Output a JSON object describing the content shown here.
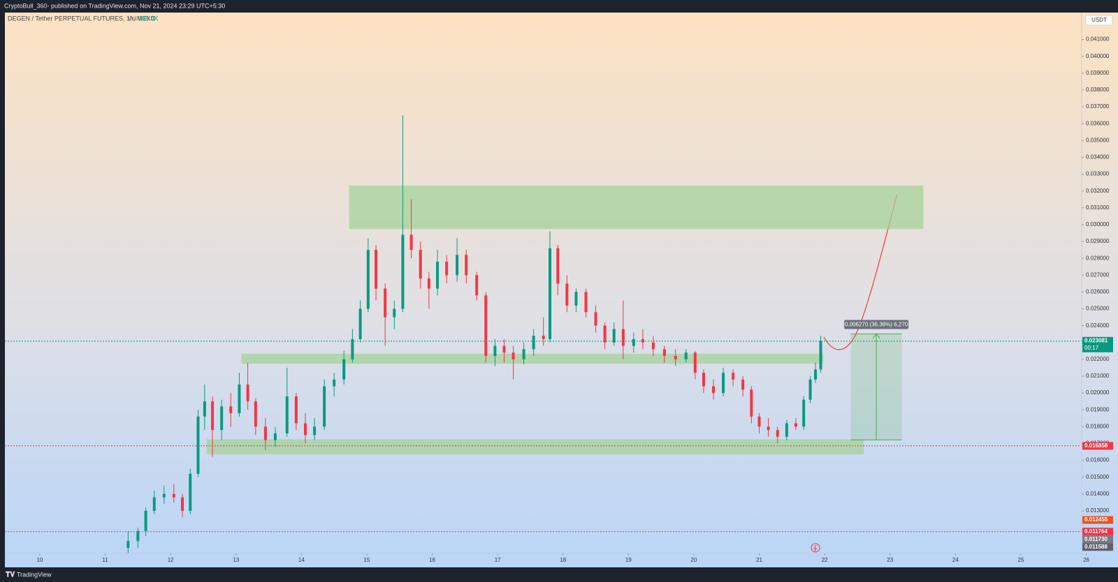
{
  "chart_data": {
    "type": "candlestick",
    "header": "CryptoBull_360- published on TradingView.com, Nov 21, 2024 23:29 UTC+5:30",
    "title": "DEGEN / Tether PERPETUAL FUTURES, 1h, MEXC",
    "volume_label": "Vol",
    "volume": "335.8K",
    "currency": "USDT",
    "brand": "TradingView",
    "up_color": "#089981",
    "down_color": "#f23645",
    "x": [
      11.35,
      11.5,
      11.62,
      11.75,
      11.9,
      12.05,
      12.18,
      12.3,
      12.42,
      12.52,
      12.64,
      12.78,
      12.92,
      13.05,
      13.18,
      13.3,
      13.45,
      13.6,
      13.78,
      13.92,
      14.06,
      14.2,
      14.35,
      14.5,
      14.65,
      14.78,
      14.9,
      15.02,
      15.14,
      15.28,
      15.42,
      15.55,
      15.68,
      15.82,
      15.95,
      16.08,
      16.22,
      16.38,
      16.52,
      16.68,
      16.82,
      16.96,
      17.1,
      17.24,
      17.4,
      17.55,
      17.7,
      17.8,
      17.92,
      18.06,
      18.2,
      18.35,
      18.5,
      18.64,
      18.78,
      18.92,
      19.08,
      19.22,
      19.38,
      19.55,
      19.72,
      19.88,
      20.02,
      20.15,
      20.3,
      20.45,
      20.6,
      20.75,
      20.88,
      21.0,
      21.14,
      21.28,
      21.42,
      21.56,
      21.68,
      21.78,
      21.86,
      21.94
    ],
    "open": [
      0.0108,
      0.0112,
      0.0118,
      0.013,
      0.0138,
      0.014,
      0.0138,
      0.013,
      0.0152,
      0.0186,
      0.0195,
      0.0178,
      0.0192,
      0.0188,
      0.0205,
      0.0195,
      0.018,
      0.0172,
      0.0176,
      0.0198,
      0.0182,
      0.0175,
      0.018,
      0.0204,
      0.0208,
      0.022,
      0.0232,
      0.025,
      0.0285,
      0.0262,
      0.0245,
      0.025,
      0.0294,
      0.0285,
      0.0268,
      0.0262,
      0.0278,
      0.027,
      0.0282,
      0.027,
      0.0258,
      0.0222,
      0.0228,
      0.0224,
      0.022,
      0.0226,
      0.0234,
      0.0232,
      0.0286,
      0.0265,
      0.0252,
      0.026,
      0.0248,
      0.024,
      0.023,
      0.0238,
      0.0228,
      0.0232,
      0.023,
      0.0226,
      0.0222,
      0.022,
      0.0224,
      0.0212,
      0.0204,
      0.02,
      0.0212,
      0.0208,
      0.0202,
      0.0186,
      0.018,
      0.0178,
      0.0174,
      0.0182,
      0.018,
      0.0196,
      0.0208,
      0.0214
    ],
    "high": [
      0.0118,
      0.012,
      0.0132,
      0.0142,
      0.0145,
      0.0146,
      0.014,
      0.0155,
      0.019,
      0.0205,
      0.0198,
      0.0196,
      0.02,
      0.0212,
      0.0218,
      0.0197,
      0.0185,
      0.018,
      0.0215,
      0.02,
      0.0188,
      0.0185,
      0.0208,
      0.0212,
      0.0225,
      0.0238,
      0.0255,
      0.0292,
      0.0288,
      0.0265,
      0.0255,
      0.0365,
      0.0315,
      0.029,
      0.0272,
      0.0285,
      0.0282,
      0.0292,
      0.0285,
      0.0272,
      0.026,
      0.0232,
      0.0232,
      0.0228,
      0.023,
      0.0238,
      0.0245,
      0.0296,
      0.0288,
      0.027,
      0.0262,
      0.0262,
      0.0252,
      0.0242,
      0.0242,
      0.0255,
      0.0236,
      0.0238,
      0.0234,
      0.0228,
      0.0226,
      0.0226,
      0.0225,
      0.0214,
      0.0208,
      0.0215,
      0.0214,
      0.021,
      0.0204,
      0.0188,
      0.0185,
      0.018,
      0.0184,
      0.0185,
      0.0198,
      0.021,
      0.0218,
      0.0234
    ],
    "low": [
      0.0105,
      0.0108,
      0.0115,
      0.0128,
      0.0134,
      0.0135,
      0.0126,
      0.0128,
      0.015,
      0.0178,
      0.0162,
      0.0172,
      0.018,
      0.0186,
      0.019,
      0.0175,
      0.0166,
      0.0168,
      0.0174,
      0.0178,
      0.017,
      0.0172,
      0.0178,
      0.0198,
      0.0205,
      0.0218,
      0.023,
      0.0248,
      0.0255,
      0.0228,
      0.0238,
      0.0248,
      0.028,
      0.0262,
      0.025,
      0.0258,
      0.0265,
      0.0266,
      0.0265,
      0.0255,
      0.0218,
      0.0216,
      0.0218,
      0.0208,
      0.0217,
      0.0222,
      0.0228,
      0.023,
      0.0258,
      0.0248,
      0.0248,
      0.0245,
      0.0236,
      0.0226,
      0.0228,
      0.022,
      0.0224,
      0.0226,
      0.0222,
      0.0218,
      0.0216,
      0.0218,
      0.0208,
      0.02,
      0.0196,
      0.0198,
      0.0204,
      0.0198,
      0.0182,
      0.0176,
      0.0174,
      0.017,
      0.0172,
      0.0178,
      0.0178,
      0.0194,
      0.0206,
      0.0212
    ],
    "close": [
      0.0112,
      0.0118,
      0.013,
      0.0138,
      0.014,
      0.0138,
      0.013,
      0.0152,
      0.0186,
      0.0195,
      0.0178,
      0.0192,
      0.0188,
      0.0205,
      0.0195,
      0.018,
      0.0172,
      0.0176,
      0.0198,
      0.0182,
      0.0175,
      0.018,
      0.0204,
      0.0208,
      0.022,
      0.0232,
      0.025,
      0.0285,
      0.0262,
      0.0245,
      0.025,
      0.0294,
      0.0285,
      0.0268,
      0.0262,
      0.0278,
      0.027,
      0.0282,
      0.027,
      0.0258,
      0.0222,
      0.0228,
      0.0224,
      0.022,
      0.0226,
      0.0234,
      0.0232,
      0.0286,
      0.0265,
      0.0252,
      0.026,
      0.0248,
      0.024,
      0.023,
      0.0238,
      0.0228,
      0.0232,
      0.023,
      0.0226,
      0.0222,
      0.022,
      0.0224,
      0.0212,
      0.0204,
      0.02,
      0.0212,
      0.0208,
      0.0202,
      0.0186,
      0.018,
      0.0178,
      0.0174,
      0.0182,
      0.018,
      0.0196,
      0.0208,
      0.0214,
      0.0231
    ],
    "xlim": [
      9.466,
      25.93
    ],
    "xticks": [
      10,
      11,
      12,
      13,
      14,
      15,
      16,
      17,
      18,
      19,
      20,
      21,
      22,
      23,
      24,
      25,
      26
    ],
    "ylim": [
      0.01047,
      0.0426
    ],
    "yticks": [
      {
        "value": 0.013,
        "label": "0.013000"
      },
      {
        "value": 0.014,
        "label": "0.014000"
      },
      {
        "value": 0.015,
        "label": "0.015000"
      },
      {
        "value": 0.016,
        "label": "0.016000"
      },
      {
        "value": 0.017,
        "label": "0.017000"
      },
      {
        "value": 0.018,
        "label": "0.018000"
      },
      {
        "value": 0.019,
        "label": "0.019000"
      },
      {
        "value": 0.02,
        "label": "0.020000"
      },
      {
        "value": 0.021,
        "label": "0.021000"
      },
      {
        "value": 0.022,
        "label": "0.022000"
      },
      {
        "value": 0.023,
        "label": "0.023000"
      },
      {
        "value": 0.024,
        "label": "0.024000"
      },
      {
        "value": 0.025,
        "label": "0.025000"
      },
      {
        "value": 0.026,
        "label": "0.026000"
      },
      {
        "value": 0.027,
        "label": "0.027000"
      },
      {
        "value": 0.028,
        "label": "0.028000"
      },
      {
        "value": 0.029,
        "label": "0.029000"
      },
      {
        "value": 0.03,
        "label": "0.030000"
      },
      {
        "value": 0.031,
        "label": "0.031000"
      },
      {
        "value": 0.032,
        "label": "0.032000"
      },
      {
        "value": 0.033,
        "label": "0.033000"
      },
      {
        "value": 0.034,
        "label": "0.034000"
      },
      {
        "value": 0.035,
        "label": "0.035000"
      },
      {
        "value": 0.036,
        "label": "0.036000"
      },
      {
        "value": 0.037,
        "label": "0.037000"
      },
      {
        "value": 0.038,
        "label": "0.038000"
      },
      {
        "value": 0.039,
        "label": "0.039000"
      },
      {
        "value": 0.04,
        "label": "0.040000"
      },
      {
        "value": 0.041,
        "label": "0.041000"
      }
    ],
    "zones": [
      {
        "x": [
          14.73,
          23.51
        ],
        "y": [
          0.02974,
          0.03232
        ],
        "color": "#a5d29a"
      },
      {
        "x": [
          13.08,
          21.98
        ],
        "y": [
          0.02174,
          0.02233
        ],
        "color": "#a5d29a"
      },
      {
        "x": [
          12.55,
          22.6
        ],
        "y": [
          0.01636,
          0.01725
        ],
        "color": "#a5d29a"
      }
    ],
    "measure": {
      "x": [
        22.4,
        23.18
      ],
      "y": [
        0.01721,
        0.02351
      ],
      "label": "0.006270 (36.38%) 6,270",
      "color": "#4caf50"
    },
    "price_tags": [
      {
        "value": 0.023081,
        "label": "0.023081",
        "sublabel": "00:17",
        "color": "#089981",
        "line": true
      },
      {
        "value": 0.016858,
        "label": "0.016858",
        "color": "#f23645",
        "line": true
      },
      {
        "value": 0.012455,
        "label": "0.012455",
        "color": "#e8541e"
      },
      {
        "value": 0.011764,
        "label": "0.011764",
        "color": "#f23645",
        "line": true
      },
      {
        "value": 0.01173,
        "label": "0.011730",
        "color": "#787b86"
      },
      {
        "value": 0.011588,
        "label": "0.011588",
        "color": "#5d606b"
      }
    ]
  }
}
